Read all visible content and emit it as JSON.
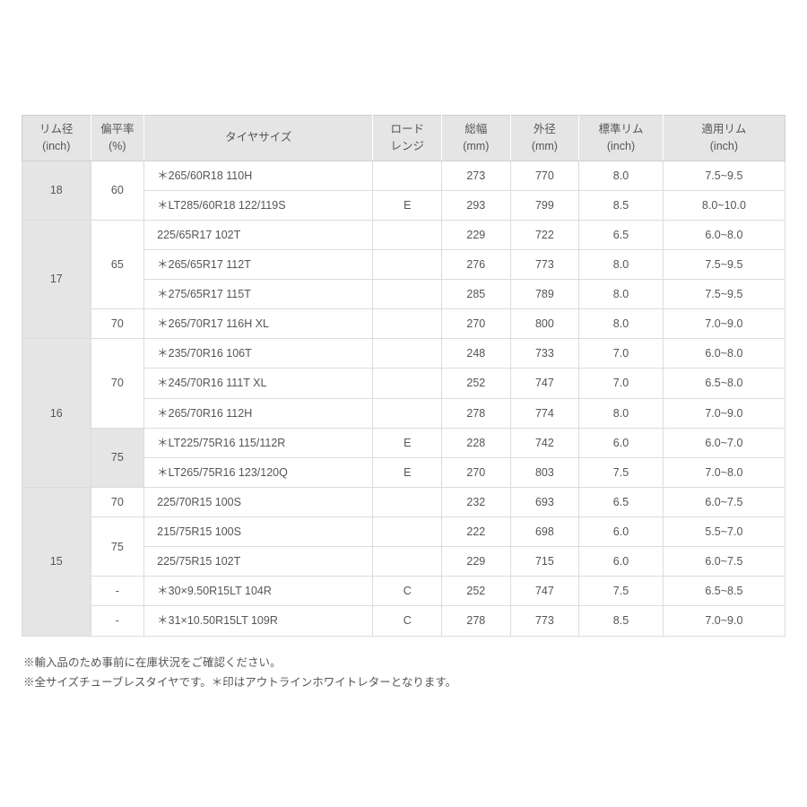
{
  "table": {
    "headers": {
      "rim_diameter": {
        "line1": "リム径",
        "line2": "(inch)"
      },
      "aspect": {
        "line1": "偏平率",
        "line2": "(%)"
      },
      "tire_size": {
        "line1": "タイヤサイズ"
      },
      "load_range": {
        "line1": "ロード",
        "line2": "レンジ"
      },
      "total_width": {
        "line1": "総幅",
        "line2": "(mm)"
      },
      "outer_dia": {
        "line1": "外径",
        "line2": "(mm)"
      },
      "std_rim": {
        "line1": "標準リム",
        "line2": "(inch)"
      },
      "app_rim": {
        "line1": "適用リム",
        "line2": "(inch)"
      }
    },
    "rows": [
      {
        "rim": "18",
        "rim_span": 2,
        "aspect": "60",
        "aspect_span": 2,
        "size": "＊265/60R18 110H",
        "lr": "",
        "w": "273",
        "d": "770",
        "std": "8.0",
        "app": "7.5~9.5"
      },
      {
        "size": "＊LT285/60R18 122/119S",
        "lr": "E",
        "w": "293",
        "d": "799",
        "std": "8.5",
        "app": "8.0~10.0"
      },
      {
        "rim": "17",
        "rim_span": 4,
        "aspect": "65",
        "aspect_span": 3,
        "size": "225/65R17 102T",
        "lr": "",
        "w": "229",
        "d": "722",
        "std": "6.5",
        "app": "6.0~8.0"
      },
      {
        "size": "＊265/65R17 112T",
        "lr": "",
        "w": "276",
        "d": "773",
        "std": "8.0",
        "app": "7.5~9.5"
      },
      {
        "size": "＊275/65R17 115T",
        "lr": "",
        "w": "285",
        "d": "789",
        "std": "8.0",
        "app": "7.5~9.5"
      },
      {
        "aspect": "70",
        "aspect_span": 1,
        "size": "＊265/70R17 116H XL",
        "lr": "",
        "w": "270",
        "d": "800",
        "std": "8.0",
        "app": "7.0~9.0"
      },
      {
        "rim": "16",
        "rim_span": 5,
        "aspect": "70",
        "aspect_span": 3,
        "size": "＊235/70R16 106T",
        "lr": "",
        "w": "248",
        "d": "733",
        "std": "7.0",
        "app": "6.0~8.0"
      },
      {
        "size": "＊245/70R16 111T XL",
        "lr": "",
        "w": "252",
        "d": "747",
        "std": "7.0",
        "app": "6.5~8.0"
      },
      {
        "size": "＊265/70R16 112H",
        "lr": "",
        "w": "278",
        "d": "774",
        "std": "8.0",
        "app": "7.0~9.0"
      },
      {
        "aspect": "75",
        "aspect_span": 2,
        "aspect_shaded": true,
        "size": "＊LT225/75R16 115/112R",
        "lr": "E",
        "w": "228",
        "d": "742",
        "std": "6.0",
        "app": "6.0~7.0"
      },
      {
        "size": "＊LT265/75R16 123/120Q",
        "lr": "E",
        "w": "270",
        "d": "803",
        "std": "7.5",
        "app": "7.0~8.0"
      },
      {
        "rim": "15",
        "rim_span": 5,
        "aspect": "70",
        "aspect_span": 1,
        "size": "225/70R15 100S",
        "lr": "",
        "w": "232",
        "d": "693",
        "std": "6.5",
        "app": "6.0~7.5"
      },
      {
        "aspect": "75",
        "aspect_span": 2,
        "size": "215/75R15 100S",
        "lr": "",
        "w": "222",
        "d": "698",
        "std": "6.0",
        "app": "5.5~7.0"
      },
      {
        "size": "225/75R15 102T",
        "lr": "",
        "w": "229",
        "d": "715",
        "std": "6.0",
        "app": "6.0~7.5"
      },
      {
        "aspect": "-",
        "aspect_span": 1,
        "size": "＊30×9.50R15LT 104R",
        "lr": "C",
        "w": "252",
        "d": "747",
        "std": "7.5",
        "app": "6.5~8.5"
      },
      {
        "aspect": "-",
        "aspect_span": 1,
        "size": "＊31×10.50R15LT 109R",
        "lr": "C",
        "w": "278",
        "d": "773",
        "std": "8.5",
        "app": "7.0~9.0"
      }
    ]
  },
  "notes": {
    "line1": "※輸入品のため事前に在庫状況をご確認ください。",
    "line2": "※全サイズチューブレスタイヤです。＊印はアウトラインホワイトレターとなります。"
  },
  "style": {
    "header_bg": "#e5e5e5",
    "border_color": "#dcdcdc",
    "text_color": "#555555",
    "body_bg": "#ffffff"
  }
}
